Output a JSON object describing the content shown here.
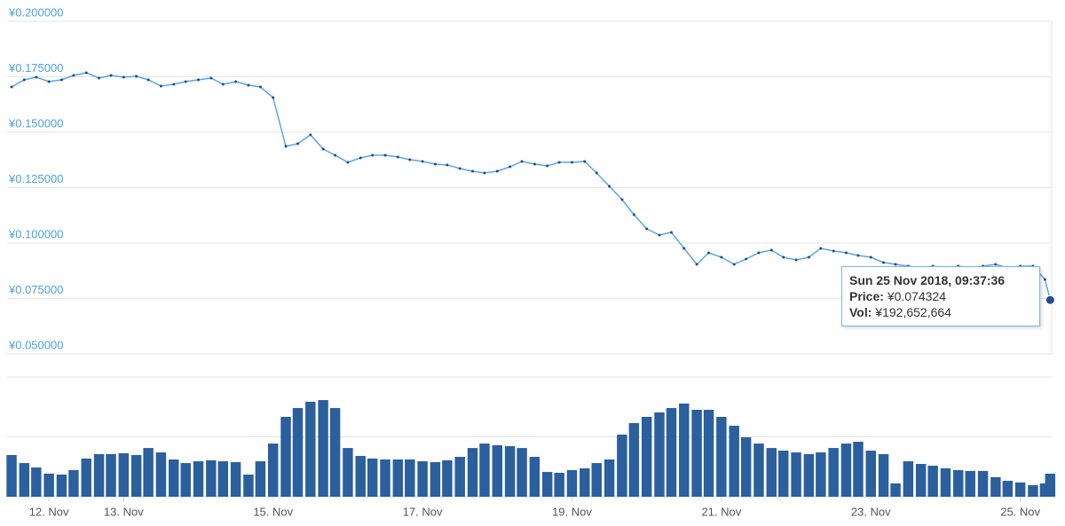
{
  "chart_data": {
    "type": "line",
    "x": [
      11.5,
      11.67,
      11.83,
      12,
      12.17,
      12.33,
      12.5,
      12.67,
      12.83,
      13,
      13.17,
      13.33,
      13.5,
      13.67,
      13.83,
      14,
      14.17,
      14.33,
      14.5,
      14.67,
      14.83,
      15,
      15.17,
      15.33,
      15.5,
      15.67,
      15.83,
      16,
      16.17,
      16.33,
      16.5,
      16.67,
      16.83,
      17,
      17.17,
      17.33,
      17.5,
      17.67,
      17.83,
      18,
      18.17,
      18.33,
      18.5,
      18.67,
      18.83,
      19,
      19.17,
      19.33,
      19.5,
      19.67,
      19.83,
      20,
      20.17,
      20.33,
      20.5,
      20.67,
      20.83,
      21,
      21.17,
      21.33,
      21.5,
      21.67,
      21.83,
      22,
      22.17,
      22.33,
      22.5,
      22.67,
      22.83,
      23,
      23.17,
      23.33,
      23.5,
      23.67,
      23.83,
      24,
      24.17,
      24.33,
      24.5,
      24.67,
      24.83,
      25,
      25.17,
      25.33,
      25.4
    ],
    "series": [
      {
        "name": "Price",
        "color": "#5aa5e6",
        "values": [
          0.1704,
          0.1736,
          0.1748,
          0.1728,
          0.1736,
          0.1756,
          0.1768,
          0.1744,
          0.1756,
          0.1748,
          0.1752,
          0.1736,
          0.1708,
          0.1716,
          0.1728,
          0.1736,
          0.1744,
          0.1716,
          0.1728,
          0.1712,
          0.1704,
          0.1656,
          0.1436,
          0.1448,
          0.1488,
          0.1424,
          0.1396,
          0.1364,
          0.1384,
          0.1396,
          0.1396,
          0.1388,
          0.1376,
          0.1368,
          0.1356,
          0.1352,
          0.1336,
          0.1324,
          0.1316,
          0.1324,
          0.1344,
          0.1368,
          0.1356,
          0.1348,
          0.1364,
          0.1364,
          0.1368,
          0.1316,
          0.1256,
          0.1196,
          0.1128,
          0.1064,
          0.1036,
          0.1048,
          0.0976,
          0.0904,
          0.0956,
          0.0936,
          0.0904,
          0.0928,
          0.0956,
          0.0968,
          0.0936,
          0.0924,
          0.0936,
          0.0976,
          0.0964,
          0.0956,
          0.0944,
          0.0936,
          0.0912,
          0.0904,
          0.0896,
          0.0888,
          0.0896,
          0.0888,
          0.0896,
          0.0888,
          0.0896,
          0.0904,
          0.0888,
          0.0896,
          0.0896,
          0.0836,
          0.074324
        ]
      },
      {
        "name": "Vol",
        "color": "#2b5f9e",
        "axis": "y2",
        "values": [
          348000000,
          281000000,
          244000000,
          193000000,
          185000000,
          222000000,
          319000000,
          356000000,
          356000000,
          363000000,
          348000000,
          407000000,
          370000000,
          311000000,
          281000000,
          296000000,
          304000000,
          296000000,
          289000000,
          185000000,
          296000000,
          444000000,
          667000000,
          741000000,
          793000000,
          807000000,
          741000000,
          407000000,
          341000000,
          319000000,
          311000000,
          311000000,
          311000000,
          296000000,
          289000000,
          304000000,
          333000000,
          407000000,
          444000000,
          430000000,
          422000000,
          407000000,
          333000000,
          207000000,
          200000000,
          222000000,
          237000000,
          281000000,
          311000000,
          519000000,
          615000000,
          667000000,
          704000000,
          741000000,
          778000000,
          726000000,
          726000000,
          667000000,
          593000000,
          496000000,
          444000000,
          407000000,
          385000000,
          370000000,
          356000000,
          370000000,
          407000000,
          444000000,
          459000000,
          385000000,
          356000000,
          111000000,
          296000000,
          274000000,
          259000000,
          237000000,
          222000000,
          215000000,
          215000000,
          163000000,
          133000000,
          119000000,
          96000000,
          111000000,
          192652664
        ]
      }
    ],
    "xlim": [
      11.44,
      25.42
    ],
    "xticks": [
      {
        "value": 12,
        "label": "12. Nov"
      },
      {
        "value": 13,
        "label": "13. Nov"
      },
      {
        "value": 15,
        "label": "15. Nov"
      },
      {
        "value": 17,
        "label": "17. Nov"
      },
      {
        "value": 19,
        "label": "19. Nov"
      },
      {
        "value": 21,
        "label": "21. Nov"
      },
      {
        "value": 23,
        "label": "23. Nov"
      },
      {
        "value": 25,
        "label": "25. Nov"
      }
    ],
    "ylim": [
      0.05,
      0.2
    ],
    "yticks": [
      {
        "value": 0.05,
        "label": "¥0.050000"
      },
      {
        "value": 0.075,
        "label": "¥0.075000"
      },
      {
        "value": 0.1,
        "label": "¥0.100000"
      },
      {
        "value": 0.125,
        "label": "¥0.125000"
      },
      {
        "value": 0.15,
        "label": "¥0.150000"
      },
      {
        "value": 0.175,
        "label": "¥0.175000"
      },
      {
        "value": 0.2,
        "label": "¥0.200000"
      }
    ],
    "y2lim": [
      0,
      1000000000
    ],
    "y2ticks": [
      0,
      500000000,
      1000000000
    ],
    "grid": true,
    "tooltip": {
      "date": "Sun 25 Nov 2018, 09:37:36",
      "price_label": "Price:",
      "price_text": "¥0.074324",
      "vol_label": "Vol:",
      "vol_text": "¥192,652,664"
    }
  }
}
